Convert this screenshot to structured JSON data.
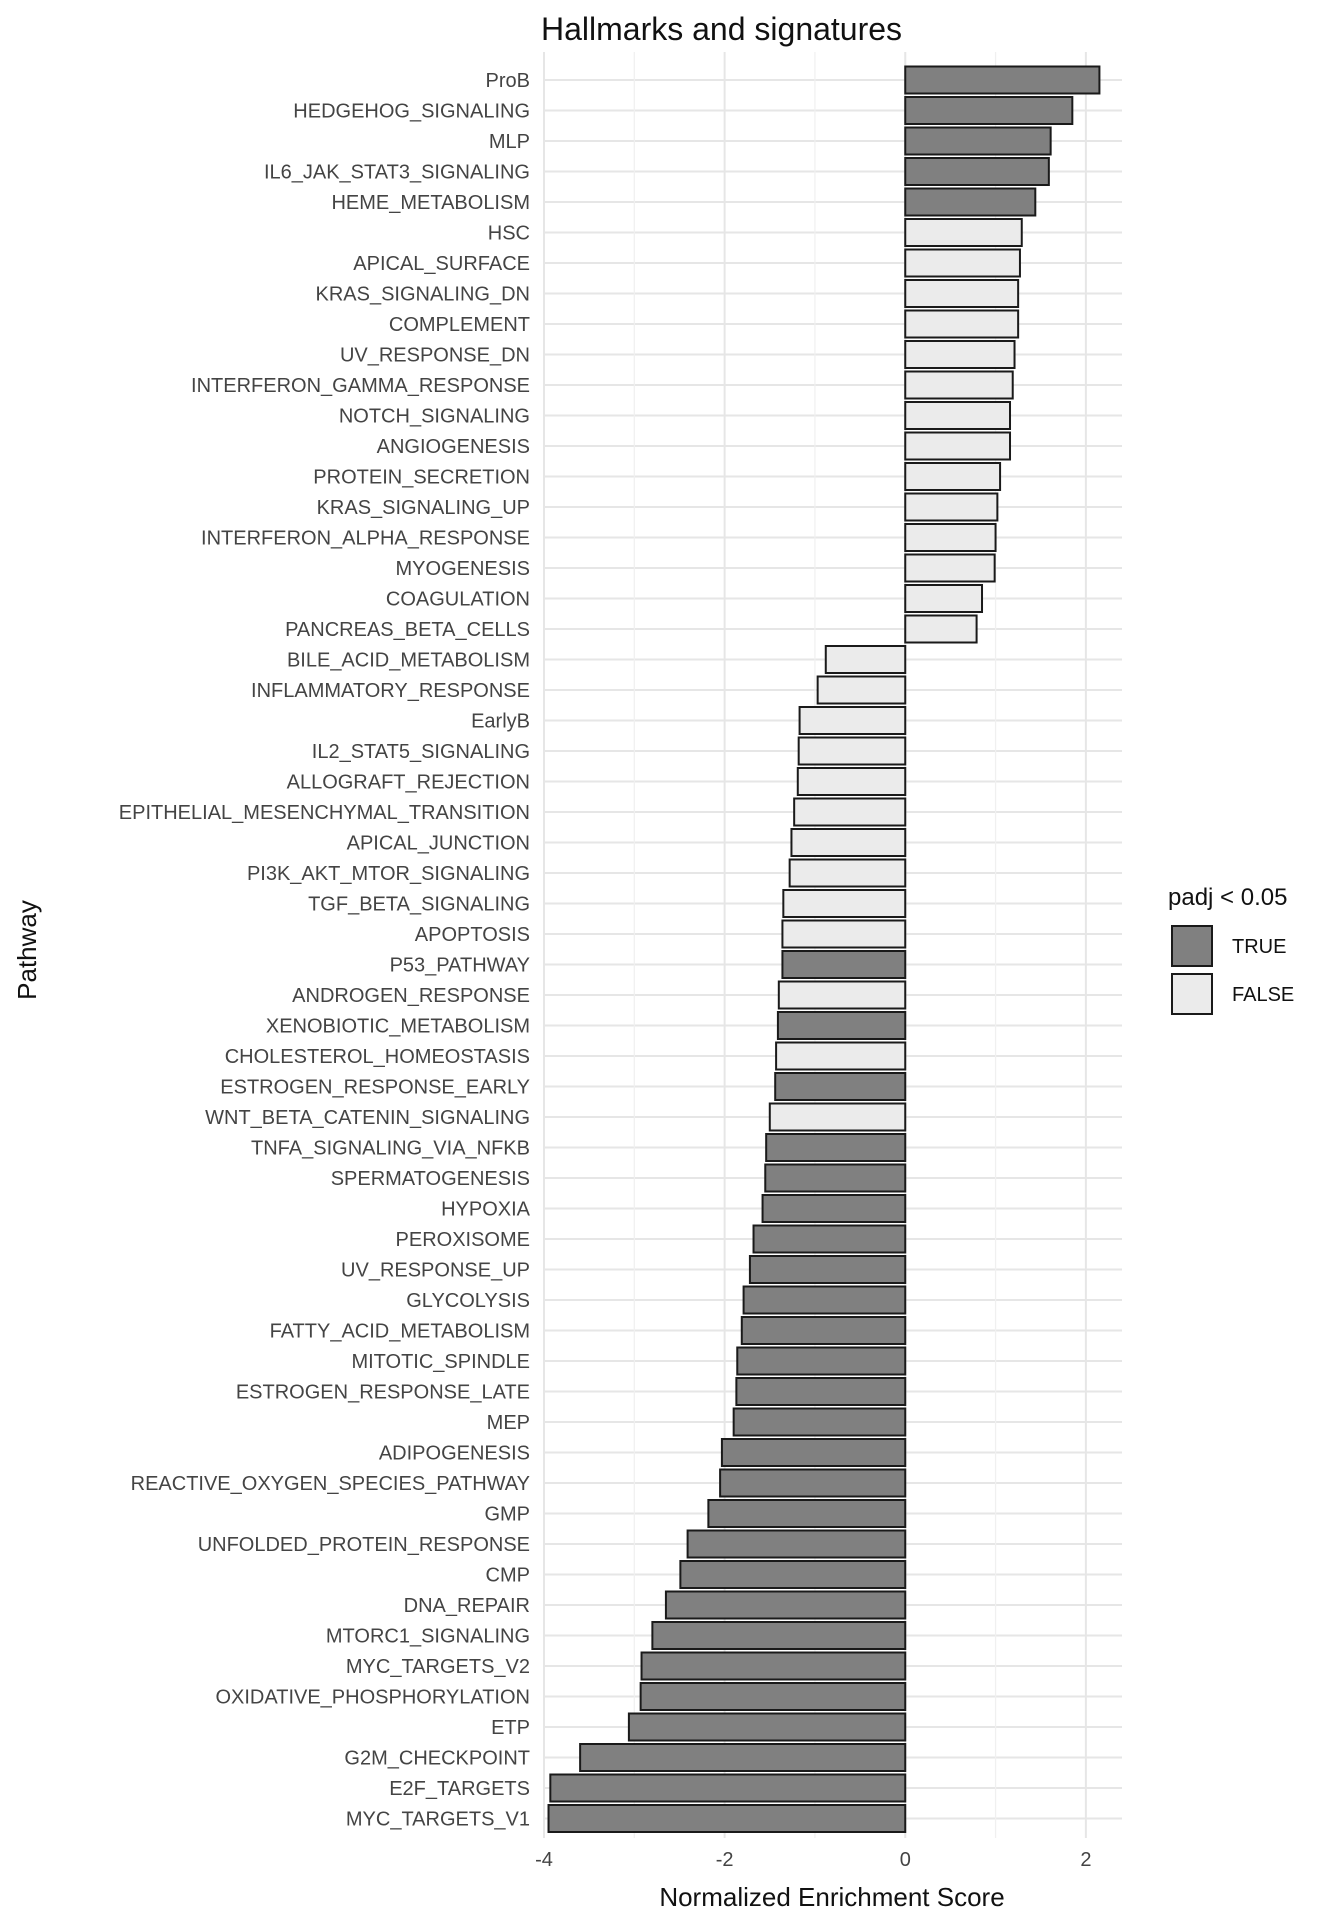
{
  "chart_data": {
    "type": "bar",
    "orientation": "horizontal",
    "title": "Hallmarks and signatures",
    "xlabel": "Normalized Enrichment Score",
    "ylabel": "Pathway",
    "xlim": [
      -4.0,
      2.4
    ],
    "xticks": [
      -4,
      -2,
      0,
      2
    ],
    "grid": true,
    "legend": {
      "title": "padj < 0.05",
      "position": "right",
      "entries": [
        {
          "label": "TRUE",
          "color": "#808080"
        },
        {
          "label": "FALSE",
          "color": "#ebebeb"
        }
      ]
    },
    "colors": {
      "TRUE": "#808080",
      "FALSE": "#ebebeb"
    },
    "bars": [
      {
        "pathway": "ProB",
        "nes": 2.15,
        "sig": "TRUE"
      },
      {
        "pathway": "HEDGEHOG_SIGNALING",
        "nes": 1.85,
        "sig": "TRUE"
      },
      {
        "pathway": "MLP",
        "nes": 1.61,
        "sig": "TRUE"
      },
      {
        "pathway": "IL6_JAK_STAT3_SIGNALING",
        "nes": 1.59,
        "sig": "TRUE"
      },
      {
        "pathway": "HEME_METABOLISM",
        "nes": 1.44,
        "sig": "TRUE"
      },
      {
        "pathway": "HSC",
        "nes": 1.29,
        "sig": "FALSE"
      },
      {
        "pathway": "APICAL_SURFACE",
        "nes": 1.27,
        "sig": "FALSE"
      },
      {
        "pathway": "KRAS_SIGNALING_DN",
        "nes": 1.25,
        "sig": "FALSE"
      },
      {
        "pathway": "COMPLEMENT",
        "nes": 1.25,
        "sig": "FALSE"
      },
      {
        "pathway": "UV_RESPONSE_DN",
        "nes": 1.21,
        "sig": "FALSE"
      },
      {
        "pathway": "INTERFERON_GAMMA_RESPONSE",
        "nes": 1.19,
        "sig": "FALSE"
      },
      {
        "pathway": "NOTCH_SIGNALING",
        "nes": 1.16,
        "sig": "FALSE"
      },
      {
        "pathway": "ANGIOGENESIS",
        "nes": 1.16,
        "sig": "FALSE"
      },
      {
        "pathway": "PROTEIN_SECRETION",
        "nes": 1.05,
        "sig": "FALSE"
      },
      {
        "pathway": "KRAS_SIGNALING_UP",
        "nes": 1.02,
        "sig": "FALSE"
      },
      {
        "pathway": "INTERFERON_ALPHA_RESPONSE",
        "nes": 1.0,
        "sig": "FALSE"
      },
      {
        "pathway": "MYOGENESIS",
        "nes": 0.99,
        "sig": "FALSE"
      },
      {
        "pathway": "COAGULATION",
        "nes": 0.85,
        "sig": "FALSE"
      },
      {
        "pathway": "PANCREAS_BETA_CELLS",
        "nes": 0.79,
        "sig": "FALSE"
      },
      {
        "pathway": "BILE_ACID_METABOLISM",
        "nes": -0.88,
        "sig": "FALSE"
      },
      {
        "pathway": "INFLAMMATORY_RESPONSE",
        "nes": -0.97,
        "sig": "FALSE"
      },
      {
        "pathway": "EarlyB",
        "nes": -1.17,
        "sig": "FALSE"
      },
      {
        "pathway": "IL2_STAT5_SIGNALING",
        "nes": -1.18,
        "sig": "FALSE"
      },
      {
        "pathway": "ALLOGRAFT_REJECTION",
        "nes": -1.19,
        "sig": "FALSE"
      },
      {
        "pathway": "EPITHELIAL_MESENCHYMAL_TRANSITION",
        "nes": -1.23,
        "sig": "FALSE"
      },
      {
        "pathway": "APICAL_JUNCTION",
        "nes": -1.26,
        "sig": "FALSE"
      },
      {
        "pathway": "PI3K_AKT_MTOR_SIGNALING",
        "nes": -1.28,
        "sig": "FALSE"
      },
      {
        "pathway": "TGF_BETA_SIGNALING",
        "nes": -1.35,
        "sig": "FALSE"
      },
      {
        "pathway": "APOPTOSIS",
        "nes": -1.36,
        "sig": "FALSE"
      },
      {
        "pathway": "P53_PATHWAY",
        "nes": -1.36,
        "sig": "TRUE"
      },
      {
        "pathway": "ANDROGEN_RESPONSE",
        "nes": -1.4,
        "sig": "FALSE"
      },
      {
        "pathway": "XENOBIOTIC_METABOLISM",
        "nes": -1.41,
        "sig": "TRUE"
      },
      {
        "pathway": "CHOLESTEROL_HOMEOSTASIS",
        "nes": -1.43,
        "sig": "FALSE"
      },
      {
        "pathway": "ESTROGEN_RESPONSE_EARLY",
        "nes": -1.44,
        "sig": "TRUE"
      },
      {
        "pathway": "WNT_BETA_CATENIN_SIGNALING",
        "nes": -1.5,
        "sig": "FALSE"
      },
      {
        "pathway": "TNFA_SIGNALING_VIA_NFKB",
        "nes": -1.54,
        "sig": "TRUE"
      },
      {
        "pathway": "SPERMATOGENESIS",
        "nes": -1.55,
        "sig": "TRUE"
      },
      {
        "pathway": "HYPOXIA",
        "nes": -1.58,
        "sig": "TRUE"
      },
      {
        "pathway": "PEROXISOME",
        "nes": -1.68,
        "sig": "TRUE"
      },
      {
        "pathway": "UV_RESPONSE_UP",
        "nes": -1.72,
        "sig": "TRUE"
      },
      {
        "pathway": "GLYCOLYSIS",
        "nes": -1.79,
        "sig": "TRUE"
      },
      {
        "pathway": "FATTY_ACID_METABOLISM",
        "nes": -1.81,
        "sig": "TRUE"
      },
      {
        "pathway": "MITOTIC_SPINDLE",
        "nes": -1.86,
        "sig": "TRUE"
      },
      {
        "pathway": "ESTROGEN_RESPONSE_LATE",
        "nes": -1.87,
        "sig": "TRUE"
      },
      {
        "pathway": "MEP",
        "nes": -1.9,
        "sig": "TRUE"
      },
      {
        "pathway": "ADIPOGENESIS",
        "nes": -2.03,
        "sig": "TRUE"
      },
      {
        "pathway": "REACTIVE_OXYGEN_SPECIES_PATHWAY",
        "nes": -2.05,
        "sig": "TRUE"
      },
      {
        "pathway": "GMP",
        "nes": -2.18,
        "sig": "TRUE"
      },
      {
        "pathway": "UNFOLDED_PROTEIN_RESPONSE",
        "nes": -2.41,
        "sig": "TRUE"
      },
      {
        "pathway": "CMP",
        "nes": -2.49,
        "sig": "TRUE"
      },
      {
        "pathway": "DNA_REPAIR",
        "nes": -2.65,
        "sig": "TRUE"
      },
      {
        "pathway": "MTORC1_SIGNALING",
        "nes": -2.8,
        "sig": "TRUE"
      },
      {
        "pathway": "MYC_TARGETS_V2",
        "nes": -2.92,
        "sig": "TRUE"
      },
      {
        "pathway": "OXIDATIVE_PHOSPHORYLATION",
        "nes": -2.93,
        "sig": "TRUE"
      },
      {
        "pathway": "ETP",
        "nes": -3.06,
        "sig": "TRUE"
      },
      {
        "pathway": "G2M_CHECKPOINT",
        "nes": -3.6,
        "sig": "TRUE"
      },
      {
        "pathway": "E2F_TARGETS",
        "nes": -3.93,
        "sig": "TRUE"
      },
      {
        "pathway": "MYC_TARGETS_V1",
        "nes": -3.95,
        "sig": "TRUE"
      }
    ]
  }
}
